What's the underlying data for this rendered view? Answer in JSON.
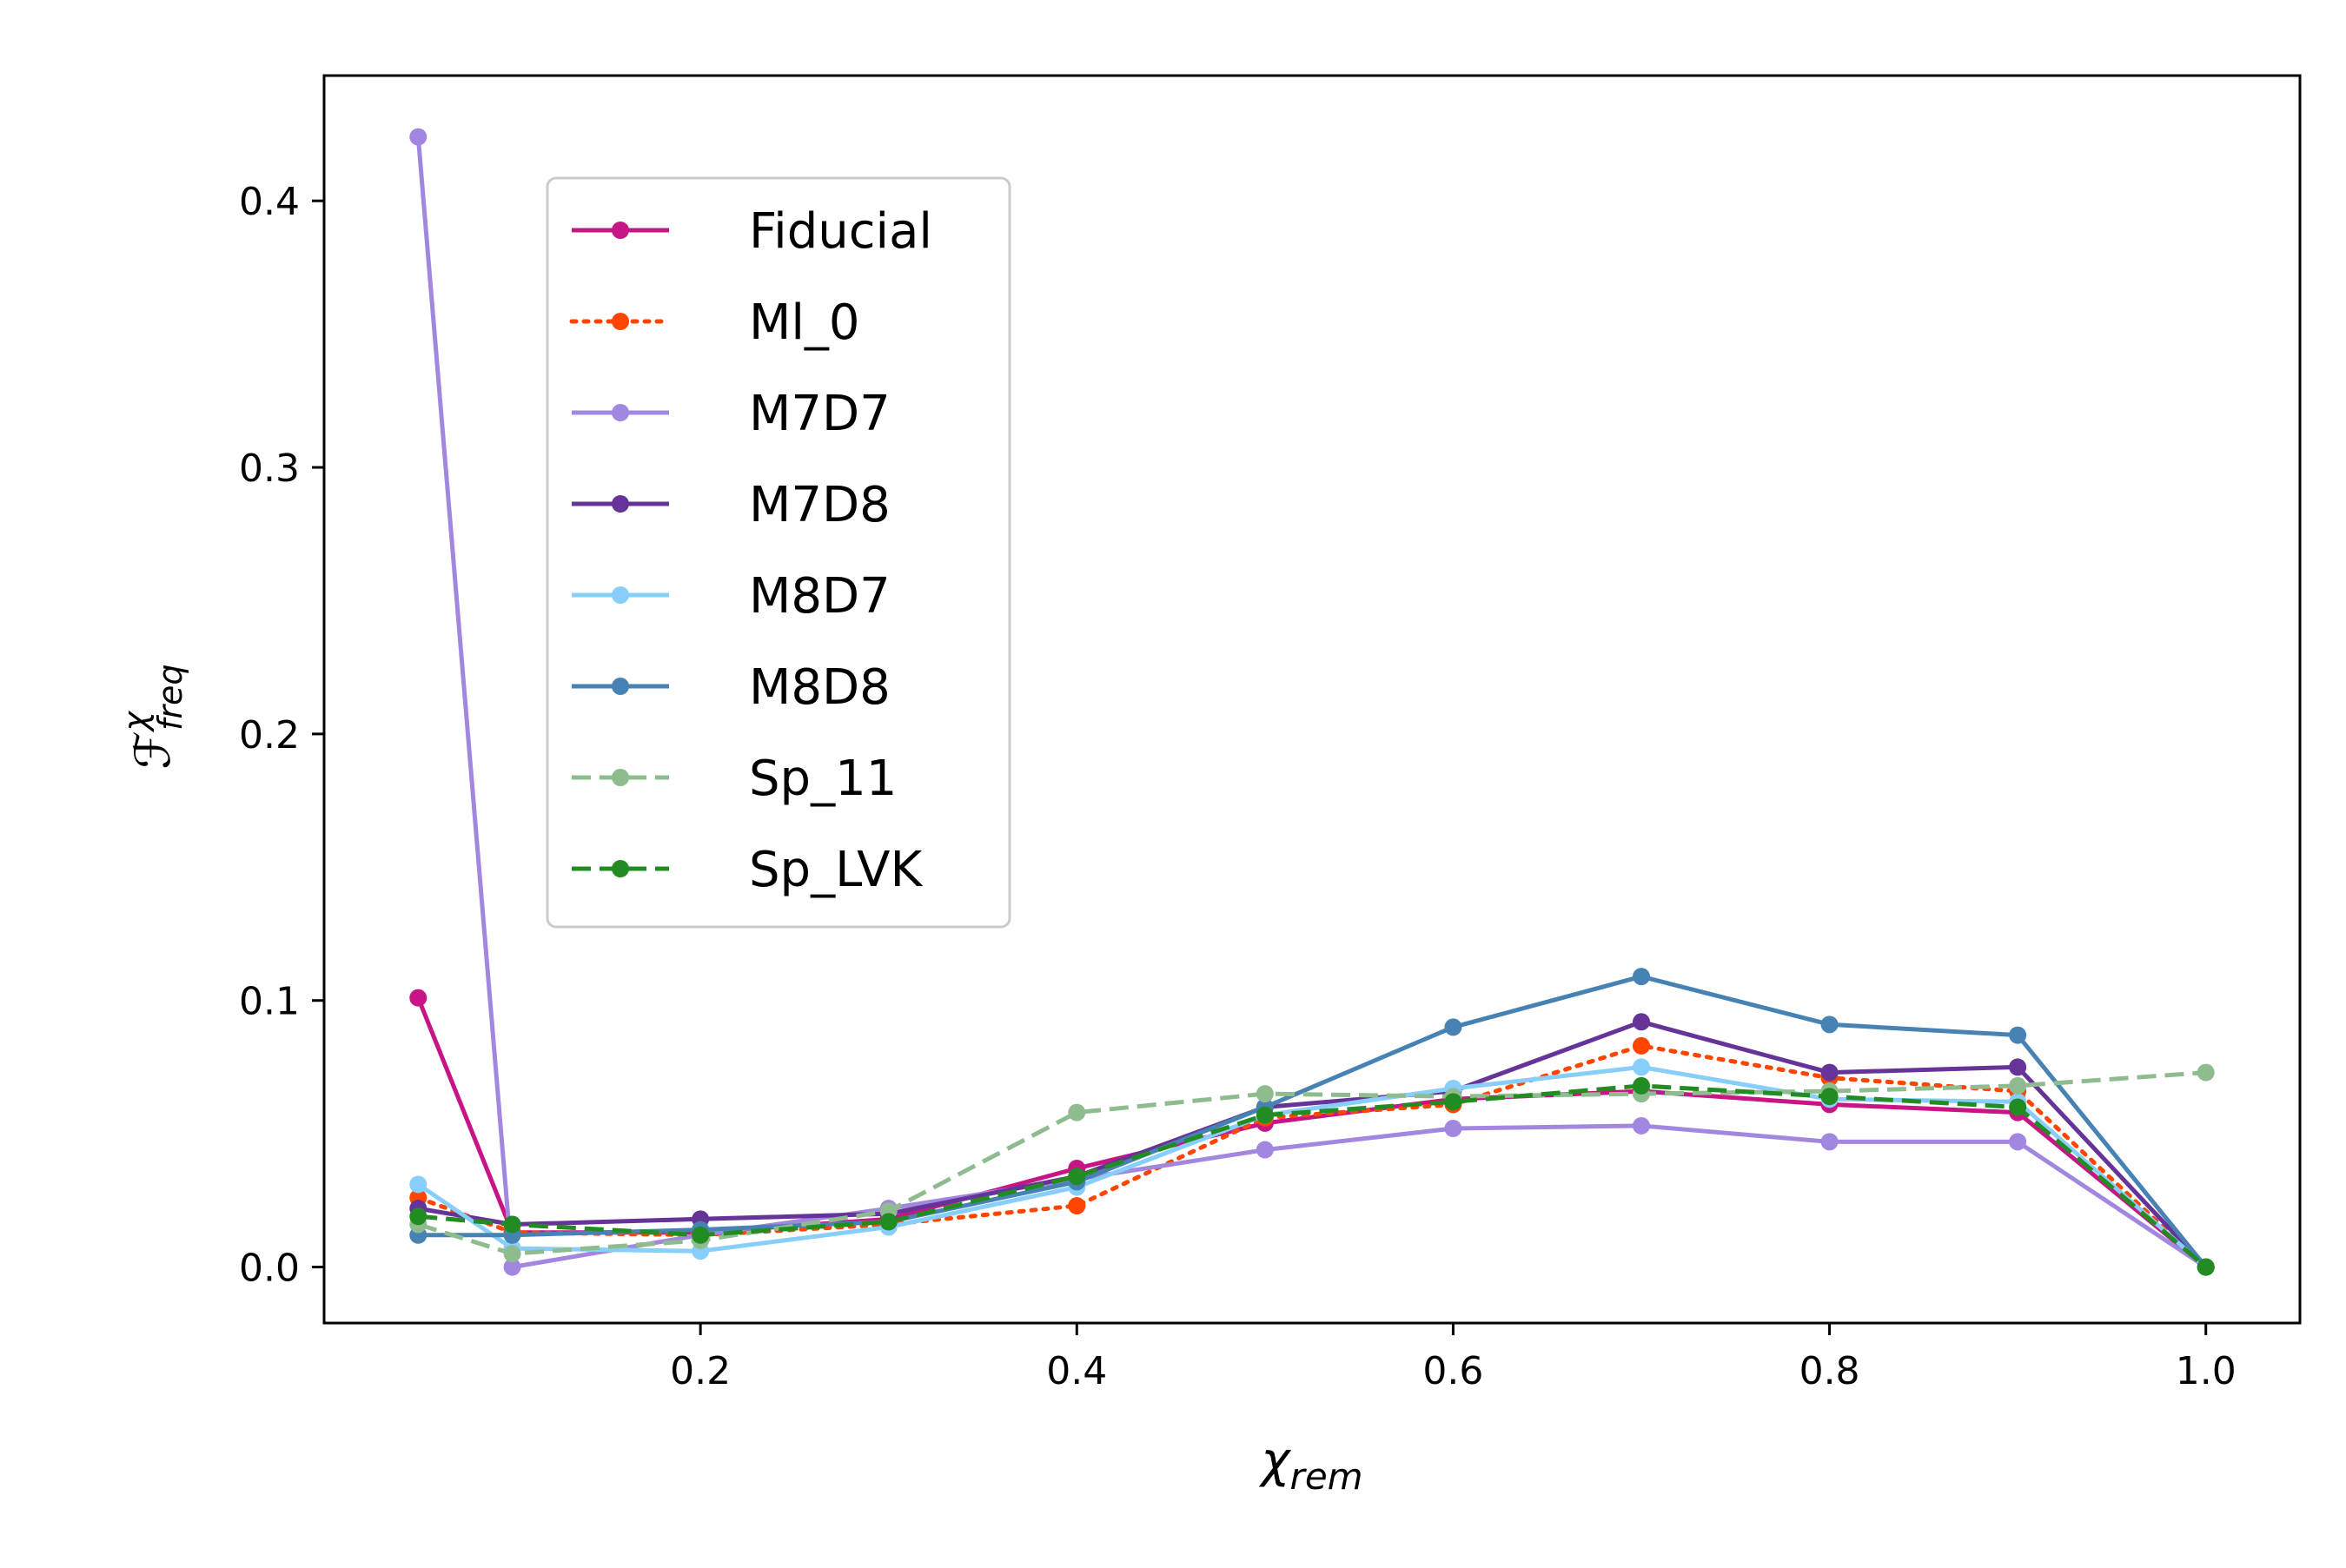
{
  "chart_data": {
    "type": "line",
    "title": "",
    "xlabel": "χ",
    "xlabel_sub": "rem",
    "ylabel": "ℱ",
    "ylabel_sup": "χ",
    "ylabel_sub": "freq",
    "xlim": [
      0.0,
      1.05
    ],
    "ylim": [
      -0.021,
      0.447
    ],
    "xticks": [
      0.2,
      0.4,
      0.6,
      0.8,
      1.0
    ],
    "xtick_labels": [
      "0.2",
      "0.4",
      "0.6",
      "0.8",
      "1.0"
    ],
    "yticks": [
      0.0,
      0.1,
      0.2,
      0.3,
      0.4
    ],
    "ytick_labels": [
      "0.0",
      "0.1",
      "0.2",
      "0.3",
      "0.4"
    ],
    "grid": false,
    "legend_position": "upper-left",
    "x": [
      0.05,
      0.1,
      0.2,
      0.3,
      0.4,
      0.5,
      0.6,
      0.7,
      0.8,
      0.9,
      1.0
    ],
    "series": [
      {
        "name": "Fiducial",
        "color": "#c71585",
        "dash": "solid",
        "values": [
          0.101,
          0.013,
          0.013,
          0.018,
          0.037,
          0.054,
          0.063,
          0.066,
          0.061,
          0.058,
          0.0
        ]
      },
      {
        "name": "Ml_0",
        "color": "#ff4500",
        "dash": "dotted",
        "values": [
          0.026,
          0.013,
          0.012,
          0.016,
          0.023,
          0.056,
          0.061,
          0.083,
          0.071,
          0.066,
          0.0
        ]
      },
      {
        "name": "M7D7",
        "color": "#a287e0",
        "dash": "solid",
        "values": [
          0.424,
          0.0,
          0.012,
          0.022,
          0.033,
          0.044,
          0.052,
          0.053,
          0.047,
          0.047,
          0.0
        ]
      },
      {
        "name": "M7D8",
        "color": "#663399",
        "dash": "solid",
        "values": [
          0.022,
          0.016,
          0.018,
          0.02,
          0.034,
          0.06,
          0.066,
          0.092,
          0.073,
          0.075,
          0.0
        ]
      },
      {
        "name": "M8D7",
        "color": "#87cefa",
        "dash": "solid",
        "values": [
          0.031,
          0.007,
          0.006,
          0.015,
          0.03,
          0.057,
          0.067,
          0.075,
          0.063,
          0.062,
          0.0
        ]
      },
      {
        "name": "M8D8",
        "color": "#4682b4",
        "dash": "solid",
        "values": [
          0.012,
          0.012,
          0.014,
          0.017,
          0.032,
          0.06,
          0.09,
          0.109,
          0.091,
          0.087,
          0.0
        ]
      },
      {
        "name": "Sp_11",
        "color": "#8fbc8f",
        "dash": "dashed",
        "values": [
          0.016,
          0.005,
          0.01,
          0.021,
          0.058,
          0.065,
          0.064,
          0.065,
          0.066,
          0.068,
          0.073
        ]
      },
      {
        "name": "Sp_LVK",
        "color": "#228b22",
        "dash": "dashed",
        "values": [
          0.019,
          0.016,
          0.012,
          0.017,
          0.034,
          0.057,
          0.062,
          0.068,
          0.064,
          0.06,
          0.0
        ]
      }
    ]
  }
}
